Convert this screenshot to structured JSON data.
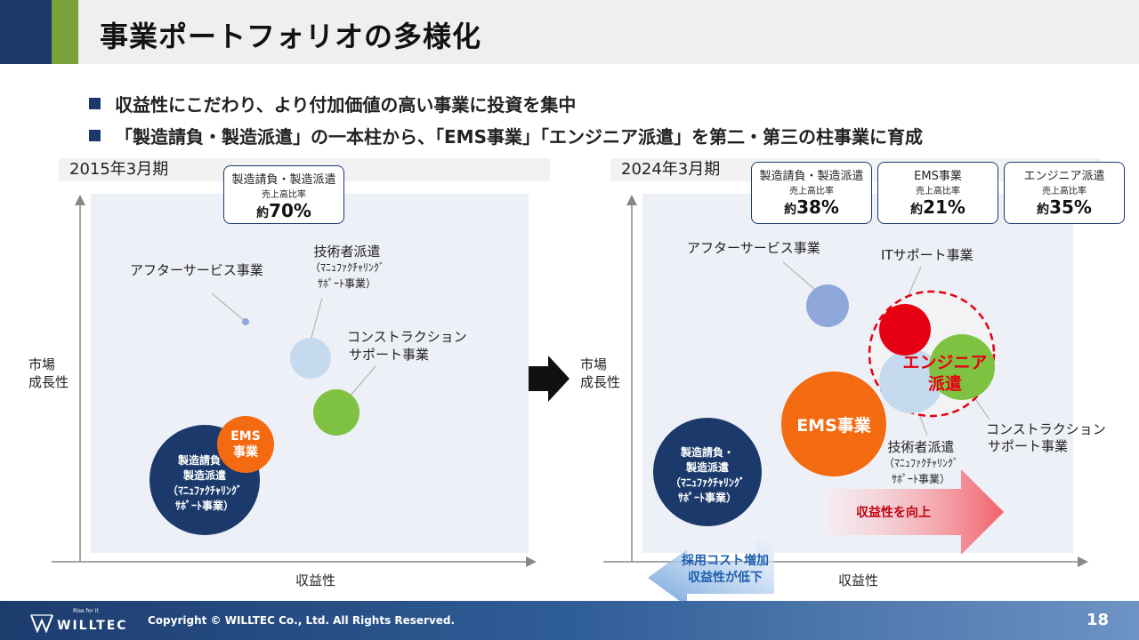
{
  "header": {
    "title": "事業ポートフォリオの多様化"
  },
  "bullets": [
    "収益性にこだわり、より付加価値の高い事業に投資を集中",
    "「製造請負・製造派遣」の一本柱から、「EMS事業」「エンジニア派遣」を第二・第三の柱事業に育成"
  ],
  "left": {
    "period": "2015年3月期",
    "y_label": "市場\n成長性",
    "x_label": "収益性",
    "share_box": {
      "name": "製造請負・製造派遣",
      "sub": "売上高比率",
      "prefix": "約",
      "value": "70%"
    },
    "labels": {
      "after_service": "アフターサービス事業",
      "engineer_line1": "技術者派遣",
      "engineer_line2": "（ﾏﾆｭﾌｧｸﾁｬﾘﾝｸﾞ",
      "engineer_line3": "ｻﾎﾟｰﾄ事業）",
      "construction_line1": "コンストラクション",
      "construction_line2": "サポート事業"
    },
    "bubbles": {
      "ems": "EMS\n事業",
      "manufacturing": "製造請負・\n製造派遣\n（ﾏﾆｭﾌｧｸﾁｬﾘﾝｸﾞ\nｻﾎﾟｰﾄ事業）"
    }
  },
  "right": {
    "period": "2024年3月期",
    "y_label": "市場\n成長性",
    "x_label": "収益性",
    "share_boxes": [
      {
        "name": "製造請負・製造派遣",
        "sub": "売上高比率",
        "prefix": "約",
        "value": "38%"
      },
      {
        "name": "EMS事業",
        "sub": "売上高比率",
        "prefix": "約",
        "value": "21%"
      },
      {
        "name": "エンジニア派遣",
        "sub": "売上高比率",
        "prefix": "約",
        "value": "35%"
      }
    ],
    "labels": {
      "after_service": "アフターサービス事業",
      "it_support": "ITサポート事業",
      "engineer_line1": "技術者派遣",
      "engineer_line2": "（ﾏﾆｭﾌｧｸﾁｬﾘﾝｸﾞ",
      "engineer_line3": "ｻﾎﾟｰﾄ事業）",
      "construction_line1": "コンストラクション",
      "construction_line2": "サポート事業"
    },
    "bubbles": {
      "ems": "EMS事業",
      "engineer_dispatch": "エンジニア\n派遣",
      "manufacturing": "製造請負・\n製造派遣\n（ﾏﾆｭﾌｧｸﾁｬﾘﾝｸﾞ\nｻﾎﾟｰﾄ事業）"
    },
    "arrow_up_profit": "収益性を向上",
    "arrow_down_text": "採用コスト増加\n収益性が低下"
  },
  "footer": {
    "copyright": "Copyright © WILLTEC Co., Ltd. All Rights Reserved.",
    "page": "18",
    "brand": "WILLTEC",
    "tagline": "Rise for it"
  },
  "colors": {
    "navy": "#1b3a6b",
    "green_accent": "#7aa23a",
    "orange": "#f36a10",
    "red": "#e60012",
    "light_blue": "#c5d9ef",
    "mid_blue": "#8fa8dc",
    "lime": "#7fc241",
    "plot_bg": "#eef0f7"
  }
}
